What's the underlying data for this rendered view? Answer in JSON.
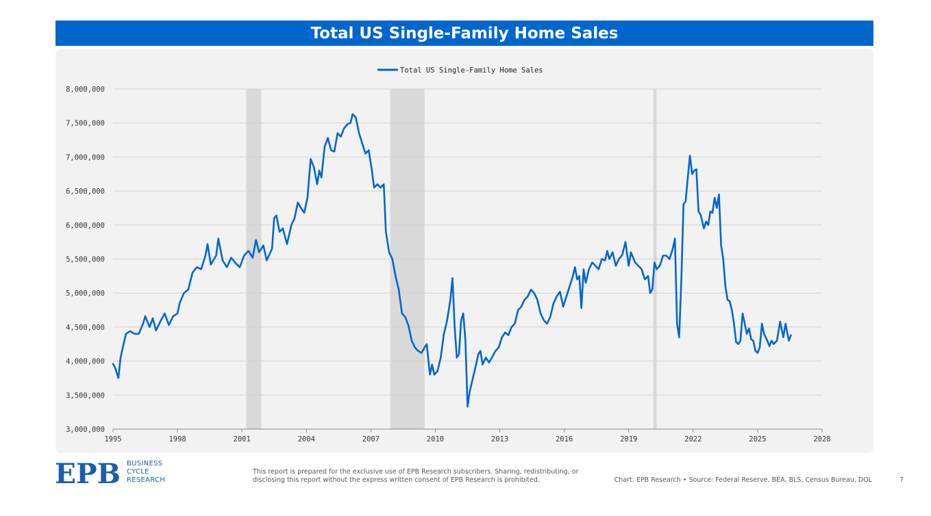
{
  "header": {
    "title": "Total US Single-Family Home Sales"
  },
  "chart_data": {
    "type": "line",
    "legend": {
      "label": "Total US Single-Family Home Sales",
      "placement": "top-center"
    },
    "xlabel": "",
    "ylabel": "",
    "xlim": [
      1995,
      2028
    ],
    "ylim": [
      3000000,
      8000000
    ],
    "x_ticks": [
      "1995",
      "1998",
      "2001",
      "2004",
      "2007",
      "2010",
      "2013",
      "2016",
      "2019",
      "2022",
      "2025",
      "2028"
    ],
    "y_ticks": [
      "3,000,000",
      "3,500,000",
      "4,000,000",
      "4,500,000",
      "5,000,000",
      "5,500,000",
      "6,000,000",
      "6,500,000",
      "7,000,000",
      "7,500,000",
      "8,000,000"
    ],
    "grid": "horizontal",
    "recessions": [
      [
        2001.2,
        2001.9
      ],
      [
        2007.9,
        2009.5
      ],
      [
        2020.15,
        2020.3
      ]
    ],
    "line_color": "#0066cc",
    "series": [
      {
        "name": "Total US Single-Family Home Sales",
        "points": [
          [
            1995.0,
            3960000
          ],
          [
            1995.1,
            3900000
          ],
          [
            1995.25,
            3750000
          ],
          [
            1995.35,
            4050000
          ],
          [
            1995.6,
            4400000
          ],
          [
            1995.8,
            4440000
          ],
          [
            1996.0,
            4400000
          ],
          [
            1996.2,
            4400000
          ],
          [
            1996.4,
            4550000
          ],
          [
            1996.5,
            4660000
          ],
          [
            1996.7,
            4500000
          ],
          [
            1996.85,
            4630000
          ],
          [
            1997.0,
            4450000
          ],
          [
            1997.2,
            4580000
          ],
          [
            1997.4,
            4700000
          ],
          [
            1997.6,
            4530000
          ],
          [
            1997.8,
            4660000
          ],
          [
            1998.0,
            4700000
          ],
          [
            1998.1,
            4850000
          ],
          [
            1998.3,
            5000000
          ],
          [
            1998.5,
            5050000
          ],
          [
            1998.7,
            5300000
          ],
          [
            1998.9,
            5380000
          ],
          [
            1999.1,
            5350000
          ],
          [
            1999.3,
            5550000
          ],
          [
            1999.4,
            5720000
          ],
          [
            1999.55,
            5420000
          ],
          [
            1999.8,
            5550000
          ],
          [
            1999.9,
            5800000
          ],
          [
            2000.1,
            5480000
          ],
          [
            2000.3,
            5380000
          ],
          [
            2000.5,
            5520000
          ],
          [
            2000.7,
            5440000
          ],
          [
            2000.9,
            5380000
          ],
          [
            2001.1,
            5550000
          ],
          [
            2001.3,
            5620000
          ],
          [
            2001.5,
            5520000
          ],
          [
            2001.65,
            5780000
          ],
          [
            2001.8,
            5600000
          ],
          [
            2002.0,
            5700000
          ],
          [
            2002.15,
            5480000
          ],
          [
            2002.4,
            5650000
          ],
          [
            2002.5,
            6100000
          ],
          [
            2002.6,
            6140000
          ],
          [
            2002.75,
            5900000
          ],
          [
            2002.9,
            5950000
          ],
          [
            2003.1,
            5720000
          ],
          [
            2003.3,
            6000000
          ],
          [
            2003.45,
            6100000
          ],
          [
            2003.6,
            6330000
          ],
          [
            2003.75,
            6250000
          ],
          [
            2003.9,
            6180000
          ],
          [
            2004.05,
            6400000
          ],
          [
            2004.2,
            6970000
          ],
          [
            2004.35,
            6850000
          ],
          [
            2004.5,
            6600000
          ],
          [
            2004.6,
            6800000
          ],
          [
            2004.7,
            6700000
          ],
          [
            2004.85,
            7150000
          ],
          [
            2005.0,
            7280000
          ],
          [
            2005.15,
            7100000
          ],
          [
            2005.3,
            7080000
          ],
          [
            2005.45,
            7350000
          ],
          [
            2005.6,
            7300000
          ],
          [
            2005.75,
            7420000
          ],
          [
            2005.9,
            7480000
          ],
          [
            2006.05,
            7500000
          ],
          [
            2006.15,
            7630000
          ],
          [
            2006.3,
            7580000
          ],
          [
            2006.45,
            7350000
          ],
          [
            2006.6,
            7200000
          ],
          [
            2006.75,
            7050000
          ],
          [
            2006.9,
            7100000
          ],
          [
            2007.05,
            6800000
          ],
          [
            2007.15,
            6550000
          ],
          [
            2007.3,
            6600000
          ],
          [
            2007.45,
            6550000
          ],
          [
            2007.6,
            6600000
          ],
          [
            2007.7,
            5900000
          ],
          [
            2007.85,
            5600000
          ],
          [
            2008.0,
            5500000
          ],
          [
            2008.15,
            5250000
          ],
          [
            2008.3,
            5050000
          ],
          [
            2008.45,
            4700000
          ],
          [
            2008.6,
            4650000
          ],
          [
            2008.75,
            4520000
          ],
          [
            2008.9,
            4300000
          ],
          [
            2009.05,
            4200000
          ],
          [
            2009.2,
            4150000
          ],
          [
            2009.35,
            4120000
          ],
          [
            2009.5,
            4200000
          ],
          [
            2009.6,
            4250000
          ],
          [
            2009.75,
            3800000
          ],
          [
            2009.85,
            3950000
          ],
          [
            2009.95,
            3800000
          ],
          [
            2010.1,
            3850000
          ],
          [
            2010.25,
            4050000
          ],
          [
            2010.4,
            4400000
          ],
          [
            2010.55,
            4600000
          ],
          [
            2010.7,
            4900000
          ],
          [
            2010.8,
            5220000
          ],
          [
            2010.9,
            4500000
          ],
          [
            2011.0,
            4050000
          ],
          [
            2011.1,
            4100000
          ],
          [
            2011.2,
            4600000
          ],
          [
            2011.3,
            4700000
          ],
          [
            2011.4,
            4300000
          ],
          [
            2011.5,
            3330000
          ],
          [
            2011.6,
            3550000
          ],
          [
            2011.75,
            3750000
          ],
          [
            2011.9,
            3950000
          ],
          [
            2012.0,
            4100000
          ],
          [
            2012.1,
            4150000
          ],
          [
            2012.2,
            3950000
          ],
          [
            2012.35,
            4050000
          ],
          [
            2012.5,
            3980000
          ],
          [
            2012.65,
            4060000
          ],
          [
            2012.8,
            4150000
          ],
          [
            2012.95,
            4200000
          ],
          [
            2013.1,
            4350000
          ],
          [
            2013.25,
            4420000
          ],
          [
            2013.4,
            4380000
          ],
          [
            2013.55,
            4500000
          ],
          [
            2013.7,
            4550000
          ],
          [
            2013.85,
            4750000
          ],
          [
            2014.0,
            4800000
          ],
          [
            2014.15,
            4900000
          ],
          [
            2014.3,
            4950000
          ],
          [
            2014.45,
            5050000
          ],
          [
            2014.6,
            5000000
          ],
          [
            2014.75,
            4900000
          ],
          [
            2014.9,
            4700000
          ],
          [
            2015.05,
            4600000
          ],
          [
            2015.2,
            4550000
          ],
          [
            2015.35,
            4650000
          ],
          [
            2015.5,
            4850000
          ],
          [
            2015.65,
            4950000
          ],
          [
            2015.8,
            5020000
          ],
          [
            2015.95,
            4800000
          ],
          [
            2016.1,
            4950000
          ],
          [
            2016.25,
            5100000
          ],
          [
            2016.4,
            5250000
          ],
          [
            2016.5,
            5380000
          ],
          [
            2016.6,
            5200000
          ],
          [
            2016.7,
            5250000
          ],
          [
            2016.8,
            4780000
          ],
          [
            2016.9,
            5350000
          ],
          [
            2017.0,
            5150000
          ],
          [
            2017.15,
            5350000
          ],
          [
            2017.3,
            5450000
          ],
          [
            2017.45,
            5400000
          ],
          [
            2017.6,
            5350000
          ],
          [
            2017.75,
            5500000
          ],
          [
            2017.9,
            5480000
          ],
          [
            2018.0,
            5620000
          ],
          [
            2018.1,
            5500000
          ],
          [
            2018.25,
            5600000
          ],
          [
            2018.4,
            5400000
          ],
          [
            2018.55,
            5500000
          ],
          [
            2018.7,
            5560000
          ],
          [
            2018.85,
            5750000
          ],
          [
            2019.0,
            5400000
          ],
          [
            2019.1,
            5600000
          ],
          [
            2019.3,
            5450000
          ],
          [
            2019.45,
            5400000
          ],
          [
            2019.6,
            5350000
          ],
          [
            2019.75,
            5200000
          ],
          [
            2019.9,
            5250000
          ],
          [
            2020.0,
            5000000
          ],
          [
            2020.1,
            5050000
          ],
          [
            2020.2,
            5450000
          ],
          [
            2020.3,
            5350000
          ],
          [
            2020.45,
            5400000
          ],
          [
            2020.6,
            5550000
          ],
          [
            2020.75,
            5550000
          ],
          [
            2020.9,
            5500000
          ],
          [
            2021.05,
            5650000
          ],
          [
            2021.15,
            5800000
          ],
          [
            2021.25,
            4550000
          ],
          [
            2021.35,
            4350000
          ],
          [
            2021.45,
            5200000
          ],
          [
            2021.55,
            6300000
          ],
          [
            2021.65,
            6350000
          ],
          [
            2021.75,
            6700000
          ],
          [
            2021.85,
            7020000
          ],
          [
            2021.95,
            6750000
          ],
          [
            2022.05,
            6800000
          ],
          [
            2022.15,
            6820000
          ],
          [
            2022.25,
            6200000
          ],
          [
            2022.35,
            6150000
          ],
          [
            2022.5,
            5950000
          ],
          [
            2022.6,
            6050000
          ],
          [
            2022.7,
            6000000
          ],
          [
            2022.8,
            6200000
          ],
          [
            2022.9,
            6180000
          ],
          [
            2023.0,
            6400000
          ],
          [
            2023.1,
            6250000
          ],
          [
            2023.2,
            6450000
          ],
          [
            2023.3,
            5700000
          ],
          [
            2023.4,
            5500000
          ],
          [
            2023.5,
            5100000
          ],
          [
            2023.6,
            4900000
          ],
          [
            2023.7,
            4880000
          ],
          [
            2023.8,
            4750000
          ],
          [
            2023.9,
            4550000
          ],
          [
            2024.0,
            4280000
          ],
          [
            2024.1,
            4250000
          ],
          [
            2024.2,
            4300000
          ],
          [
            2024.3,
            4700000
          ],
          [
            2024.4,
            4550000
          ],
          [
            2024.5,
            4400000
          ],
          [
            2024.6,
            4480000
          ],
          [
            2024.7,
            4320000
          ],
          [
            2024.8,
            4300000
          ],
          [
            2024.9,
            4150000
          ],
          [
            2025.0,
            4120000
          ],
          [
            2025.1,
            4200000
          ],
          [
            2025.2,
            4550000
          ],
          [
            2025.3,
            4400000
          ],
          [
            2025.45,
            4300000
          ],
          [
            2025.55,
            4220000
          ],
          [
            2025.65,
            4300000
          ],
          [
            2025.75,
            4250000
          ],
          [
            2025.9,
            4300000
          ],
          [
            2026.05,
            4580000
          ],
          [
            2026.2,
            4350000
          ],
          [
            2026.3,
            4550000
          ],
          [
            2026.45,
            4300000
          ],
          [
            2026.55,
            4380000
          ]
        ]
      }
    ]
  },
  "footer": {
    "logo_text": "EPB",
    "logo_sub": [
      "BUSINESS",
      "CYCLE",
      "RESEARCH"
    ],
    "disclaimer": "This report is prepared for the exclusive use of EPB Research subscribers. Sharing, redistributing, or disclosing this report without the express written consent of EPB Research is prohibited.",
    "source": "Chart: EPB Research  •  Source: Federal Reserve, BEA, BLS, Census Bureau, DOL",
    "page_number": "7"
  }
}
